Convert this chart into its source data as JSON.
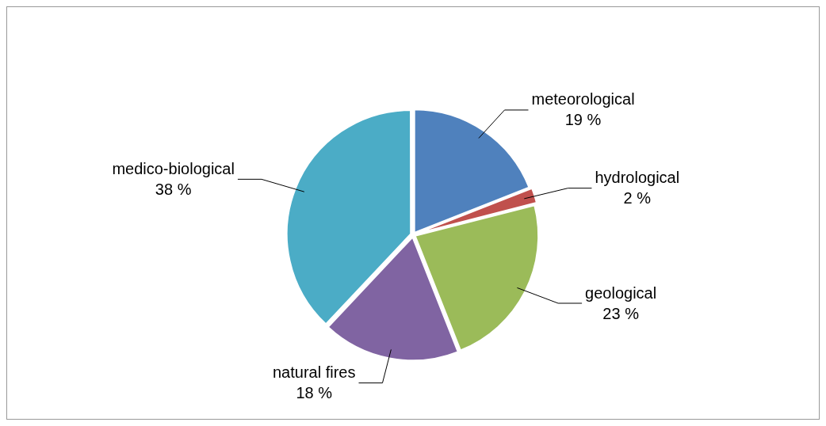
{
  "chart_data": {
    "type": "pie",
    "categories": [
      "meteorological",
      "hydrological",
      "geological",
      "natural fires",
      "medico-biological"
    ],
    "values": [
      19,
      2,
      23,
      18,
      38
    ],
    "colors": [
      "#4f81bd",
      "#c0504d",
      "#9bbb59",
      "#8064a2",
      "#4bacc6"
    ],
    "value_labels": [
      "19 %",
      "2 %",
      "23 %",
      "18 %",
      "38 %"
    ]
  }
}
